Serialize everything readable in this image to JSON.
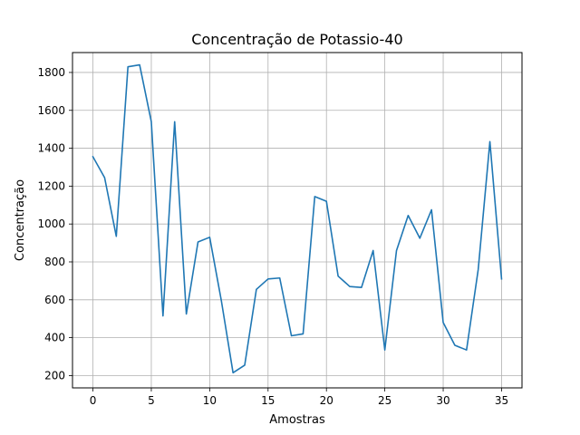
{
  "chart_data": {
    "type": "line",
    "title": "Concentração de Potassio-40",
    "xlabel": "Amostras",
    "ylabel": "Concentração",
    "xlim": [
      -1.75,
      36.75
    ],
    "ylim": [
      135,
      1905
    ],
    "x_ticks": [
      0,
      5,
      10,
      15,
      20,
      25,
      30,
      35
    ],
    "y_ticks": [
      200,
      400,
      600,
      800,
      1000,
      1200,
      1400,
      1600,
      1800
    ],
    "grid": true,
    "series": [
      {
        "color": "#1f77b4",
        "x": [
          0,
          1,
          2,
          3,
          4,
          5,
          6,
          7,
          8,
          9,
          10,
          11,
          12,
          13,
          14,
          15,
          16,
          17,
          18,
          19,
          20,
          21,
          22,
          23,
          24,
          25,
          26,
          27,
          28,
          29,
          30,
          31,
          32,
          33,
          34,
          35
        ],
        "values": [
          1355,
          1245,
          935,
          1830,
          1840,
          1540,
          515,
          1540,
          525,
          905,
          930,
          595,
          215,
          255,
          655,
          710,
          715,
          410,
          420,
          1145,
          1120,
          725,
          670,
          665,
          860,
          335,
          860,
          1045,
          925,
          1075,
          480,
          360,
          335,
          760,
          1435,
          710
        ]
      }
    ]
  }
}
